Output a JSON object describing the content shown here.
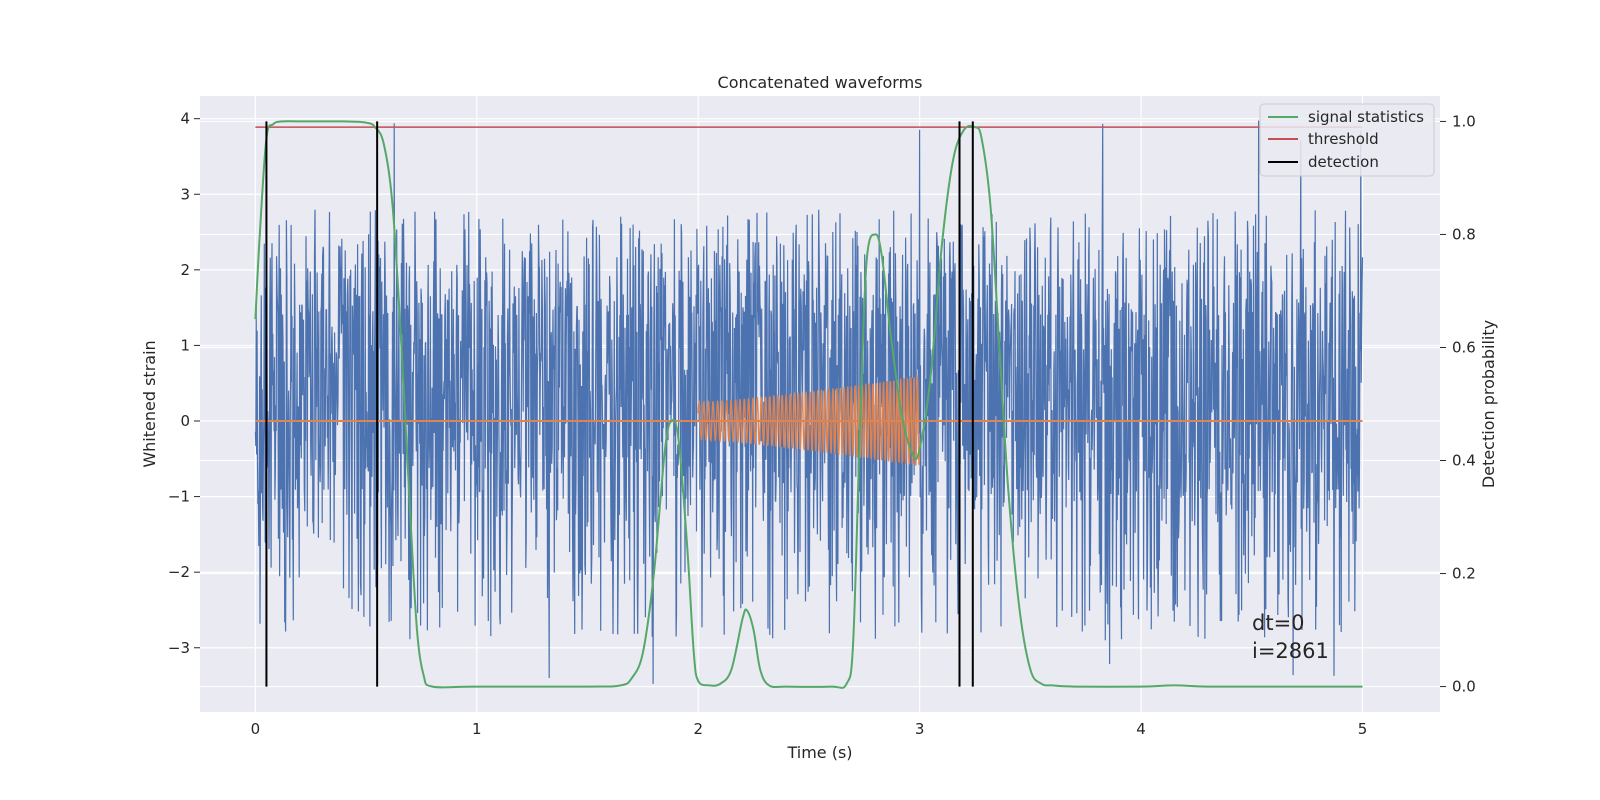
{
  "chart_data": {
    "type": "line",
    "title": "Concatenated waveforms",
    "xlabel": "Time (s)",
    "ylabel": "Whitened strain",
    "y2label": "Detection probability",
    "xlim": [
      -0.25,
      5.35
    ],
    "ylim": [
      -3.85,
      4.3
    ],
    "y2lim": [
      -0.045,
      1.045
    ],
    "x_ticks": [
      0,
      1,
      2,
      3,
      4,
      5
    ],
    "y_ticks": [
      -3,
      -2,
      -1,
      0,
      1,
      2,
      3,
      4
    ],
    "y2_ticks": [
      0.0,
      0.2,
      0.4,
      0.6,
      0.8,
      1.0
    ],
    "x_tick_labels": [
      "0",
      "1",
      "2",
      "3",
      "4",
      "5"
    ],
    "y_tick_labels": [
      "−3",
      "−2",
      "−1",
      "0",
      "1",
      "2",
      "3",
      "4"
    ],
    "y2_tick_labels": [
      "0.0",
      "0.2",
      "0.4",
      "0.6",
      "0.8",
      "1.0"
    ],
    "grid": true,
    "legend_position": "top-right",
    "colors": {
      "strain": "#4c72b0",
      "injection": "#dd8452",
      "signal_statistics": "#55a868",
      "threshold": "#c44e52",
      "detection": "#000000",
      "background": "#eaeaf2",
      "grid": "#ffffff"
    },
    "series": [
      {
        "name": "signal statistics",
        "axis": "right",
        "x": [
          0,
          0.02,
          0.05,
          0.08,
          0.12,
          0.2,
          0.3,
          0.4,
          0.5,
          0.54,
          0.58,
          0.62,
          0.66,
          0.7,
          0.73,
          0.76,
          0.8,
          1.0,
          1.5,
          1.65,
          1.7,
          1.75,
          1.8,
          1.85,
          1.88,
          1.91,
          1.95,
          1.98,
          2.0,
          2.05,
          2.1,
          2.15,
          2.2,
          2.22,
          2.25,
          2.28,
          2.32,
          2.4,
          2.6,
          2.67,
          2.7,
          2.73,
          2.76,
          2.8,
          2.83,
          2.87,
          2.92,
          2.97,
          3.0,
          3.05,
          3.1,
          3.15,
          3.2,
          3.25,
          3.28,
          3.32,
          3.36,
          3.4,
          3.45,
          3.5,
          3.55,
          3.6,
          3.7,
          4.0,
          4.15,
          4.3,
          4.6,
          5.0
        ],
        "values": [
          0.65,
          0.8,
          0.97,
          0.995,
          1.0,
          1.0,
          1.0,
          1.0,
          0.998,
          0.99,
          0.96,
          0.85,
          0.6,
          0.3,
          0.1,
          0.02,
          0.0,
          0.0,
          0.0,
          0.002,
          0.015,
          0.06,
          0.2,
          0.42,
          0.47,
          0.44,
          0.25,
          0.06,
          0.01,
          0.002,
          0.005,
          0.03,
          0.12,
          0.135,
          0.1,
          0.03,
          0.002,
          0.0,
          0.0,
          0.005,
          0.08,
          0.45,
          0.75,
          0.8,
          0.76,
          0.62,
          0.48,
          0.41,
          0.42,
          0.55,
          0.78,
          0.93,
          0.985,
          0.99,
          0.97,
          0.85,
          0.6,
          0.35,
          0.14,
          0.03,
          0.005,
          0.002,
          0.0,
          0.0,
          0.002,
          0.0,
          0.0,
          0.0
        ]
      },
      {
        "name": "threshold",
        "axis": "right",
        "x": [
          0,
          5
        ],
        "values": [
          0.99,
          0.99
        ]
      },
      {
        "name": "detection",
        "axis": "right",
        "segments_x": [
          0.05,
          0.55,
          3.18,
          3.24
        ],
        "range": [
          0.0,
          1.0
        ]
      }
    ],
    "strain_noise": {
      "axis": "left",
      "x_range": [
        0,
        5
      ],
      "core_band": [
        -0.9,
        1.4
      ],
      "peak_range": [
        -3.5,
        4.0
      ]
    },
    "injection": {
      "axis": "left",
      "x_range": [
        2,
        3
      ],
      "amplitude_start": 0.25,
      "amplitude_end": 0.6,
      "baseline": 0
    },
    "annotations": [
      "dt=0",
      "i=2861"
    ]
  }
}
